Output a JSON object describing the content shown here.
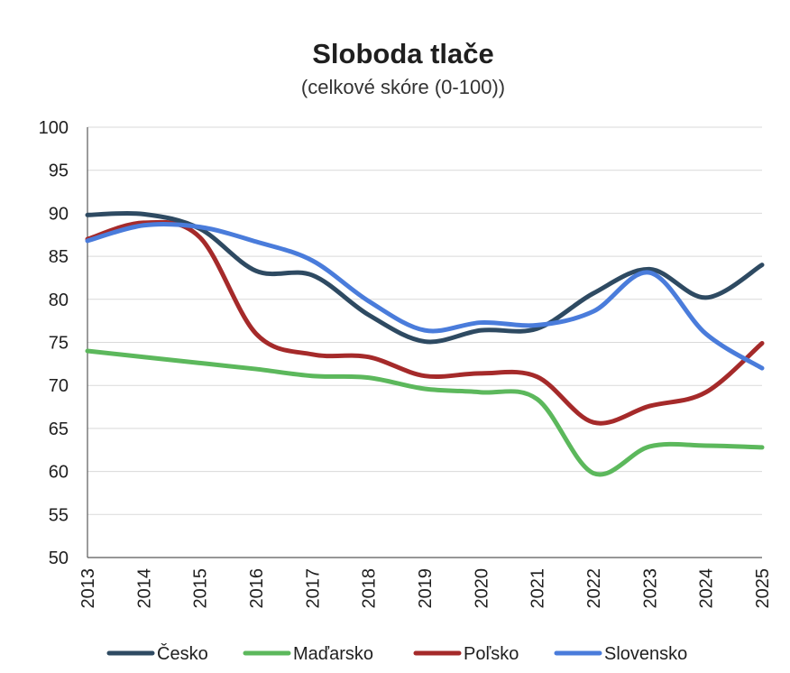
{
  "chart_data": {
    "type": "line",
    "title": "Sloboda tlače",
    "subtitle": "(celkové skóre (0-100))",
    "x": [
      "2013",
      "2014",
      "2015",
      "2016",
      "2017",
      "2018",
      "2019",
      "2020",
      "2021",
      "2022",
      "2023",
      "2024",
      "2025"
    ],
    "ylim": [
      50,
      100
    ],
    "yticks": [
      50,
      55,
      60,
      65,
      70,
      75,
      80,
      85,
      90,
      95,
      100
    ],
    "grid": true,
    "legend_position": "bottom",
    "series": [
      {
        "name": "Česko",
        "color": "#2e4a62",
        "values": [
          89.8,
          89.9,
          88.2,
          83.3,
          82.8,
          78.2,
          75.1,
          76.4,
          76.6,
          80.7,
          83.5,
          80.2,
          84.0
        ]
      },
      {
        "name": "Maďarsko",
        "color": "#5cb85c",
        "values": [
          74.0,
          73.3,
          72.6,
          71.9,
          71.1,
          70.9,
          69.6,
          69.2,
          68.4,
          59.8,
          62.9,
          63.0,
          62.8
        ]
      },
      {
        "name": "Poľsko",
        "color": "#a52a2a",
        "values": [
          87.0,
          88.9,
          87.2,
          76.0,
          73.6,
          73.3,
          71.1,
          71.4,
          71.0,
          65.7,
          67.6,
          69.2,
          74.9
        ]
      },
      {
        "name": "Slovensko",
        "color": "#4a7cdb",
        "values": [
          86.8,
          88.6,
          88.4,
          86.7,
          84.5,
          79.8,
          76.4,
          77.3,
          77.0,
          78.6,
          83.1,
          76.0,
          72.0
        ]
      }
    ]
  }
}
